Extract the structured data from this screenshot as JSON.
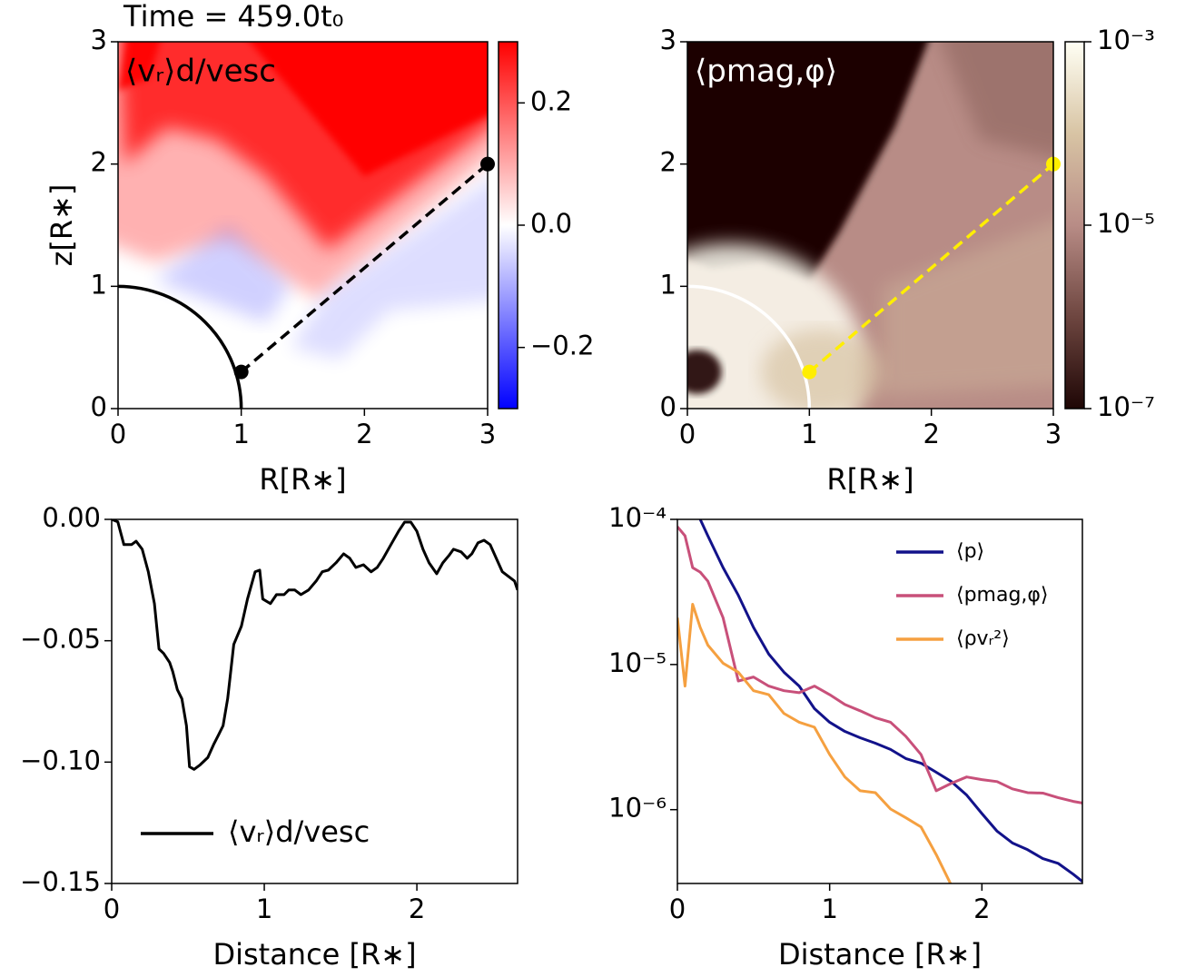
{
  "chart_data": [
    {
      "type": "heatmap",
      "title": "Time = 459.0t₀",
      "label": "⟨vᵣ⟩d/vesc",
      "label_color": "#000000",
      "xlabel": "R[R∗]",
      "ylabel": "z[R∗]",
      "xlim": [
        0,
        3
      ],
      "xticks": [
        0,
        1,
        2,
        3
      ],
      "ylim": [
        0,
        3
      ],
      "yticks": [
        0,
        1,
        2,
        3
      ],
      "colormap": "bwr",
      "clim": [
        -0.3,
        0.3
      ],
      "cticks": [
        {
          "value": 0.2,
          "label": "0.2"
        },
        {
          "value": 0,
          "label": "0.0"
        },
        {
          "value": -0.2,
          "label": "−0.2"
        }
      ],
      "overlay": {
        "circle_r": 1,
        "circle_color": "#000000",
        "x": [
          1,
          3
        ],
        "y": [
          0.3,
          2
        ],
        "color": "#000000"
      }
    },
    {
      "type": "heatmap",
      "label": "⟨pmag,φ⟩",
      "label_color": "#ffffff",
      "xlabel": "R[R∗]",
      "xlim": [
        0,
        3
      ],
      "xticks": [
        0,
        1,
        2,
        3
      ],
      "ylim": [
        0,
        3
      ],
      "yticks": [
        0,
        1,
        2,
        3
      ],
      "colormap": "pink",
      "clog": true,
      "clim": [
        1e-07,
        0.001
      ],
      "cticks": [
        {
          "value": 0.001,
          "label": "10⁻³"
        },
        {
          "value": 1e-05,
          "label": "10⁻⁵"
        },
        {
          "value": 1e-07,
          "label": "10⁻⁷"
        }
      ],
      "overlay": {
        "circle_r": 1,
        "circle_color": "#ffffff",
        "x": [
          1,
          3
        ],
        "y": [
          0.3,
          2
        ],
        "color": "#ffee00"
      }
    },
    {
      "type": "line",
      "xlabel": "Distance [R∗]",
      "xlim": [
        0,
        2.66
      ],
      "xticks": [
        0,
        1,
        2
      ],
      "ylim": [
        -0.15,
        0
      ],
      "yticks": [
        {
          "value": 0,
          "label": "0.00"
        },
        {
          "value": -0.05,
          "label": "−0.05"
        },
        {
          "value": -0.1,
          "label": "−0.10"
        },
        {
          "value": -0.15,
          "label": "−0.15"
        }
      ],
      "legend": "lower left",
      "x": [
        0,
        0.04,
        0.08,
        0.13,
        0.16,
        0.2,
        0.24,
        0.28,
        0.31,
        0.34,
        0.38,
        0.4,
        0.43,
        0.46,
        0.49,
        0.51,
        0.54,
        0.58,
        0.63,
        0.67,
        0.7,
        0.73,
        0.76,
        0.8,
        0.85,
        0.89,
        0.94,
        0.97,
        0.99,
        1.04,
        1.08,
        1.13,
        1.16,
        1.2,
        1.24,
        1.29,
        1.34,
        1.38,
        1.42,
        1.47,
        1.52,
        1.56,
        1.6,
        1.65,
        1.7,
        1.74,
        1.78,
        1.83,
        1.88,
        1.92,
        1.96,
        2.0,
        2.04,
        2.08,
        2.13,
        2.17,
        2.21,
        2.24,
        2.29,
        2.33,
        2.36,
        2.4,
        2.44,
        2.48,
        2.52,
        2.56,
        2.6,
        2.64,
        2.66
      ],
      "series": [
        {
          "name": "⟨vᵣ⟩d/vesc",
          "color": "#000000",
          "values": [
            0,
            -0.001,
            -0.0104,
            -0.0104,
            -0.009,
            -0.0123,
            -0.0216,
            -0.0347,
            -0.0534,
            -0.0552,
            -0.059,
            -0.0627,
            -0.0701,
            -0.0739,
            -0.085,
            -0.1019,
            -0.103,
            -0.1011,
            -0.0981,
            -0.0925,
            -0.0888,
            -0.085,
            -0.0739,
            -0.0515,
            -0.044,
            -0.0328,
            -0.0216,
            -0.0209,
            -0.0328,
            -0.0347,
            -0.031,
            -0.031,
            -0.0291,
            -0.0291,
            -0.031,
            -0.0291,
            -0.0254,
            -0.0216,
            -0.0209,
            -0.0179,
            -0.0142,
            -0.016,
            -0.0198,
            -0.0187,
            -0.0216,
            -0.0198,
            -0.016,
            -0.0104,
            -0.0049,
            -0.0011,
            -0.0011,
            -0.0049,
            -0.0123,
            -0.0179,
            -0.0224,
            -0.0179,
            -0.0149,
            -0.0123,
            -0.0134,
            -0.016,
            -0.0142,
            -0.0097,
            -0.0086,
            -0.0104,
            -0.016,
            -0.0216,
            -0.0235,
            -0.0254,
            -0.0291
          ]
        }
      ]
    },
    {
      "type": "line",
      "yscale": "log",
      "xlabel": "Distance [R∗]",
      "xlim": [
        0,
        2.66
      ],
      "xticks": [
        0,
        1,
        2
      ],
      "ylim": [
        3.1e-07,
        0.0001
      ],
      "yticks": [
        {
          "value": 0.0001,
          "label": "10⁻⁴"
        },
        {
          "value": 1e-05,
          "label": "10⁻⁵"
        },
        {
          "value": 1e-06,
          "label": "10⁻⁶"
        }
      ],
      "legend": "upper right",
      "x": [
        0,
        0.05,
        0.1,
        0.15,
        0.2,
        0.3,
        0.4,
        0.5,
        0.6,
        0.7,
        0.8,
        0.9,
        1.0,
        1.1,
        1.2,
        1.3,
        1.4,
        1.5,
        1.6,
        1.7,
        1.8,
        1.9,
        2.0,
        2.1,
        2.2,
        2.3,
        2.4,
        2.5,
        2.6,
        2.66
      ],
      "series": [
        {
          "name": "⟨p⟩",
          "color": "#12128a",
          "values": [
            null,
            null,
            null,
            0.0001,
            7.7e-05,
            4.65e-05,
            3e-05,
            1.8e-05,
            1.18e-05,
            8.85e-06,
            7.1e-06,
            4.97e-06,
            4e-06,
            3.46e-06,
            3.13e-06,
            2.87e-06,
            2.6e-06,
            2.25e-06,
            2.09e-06,
            1.81e-06,
            1.56e-06,
            1.26e-06,
            9.4e-07,
            7.1e-07,
            5.9e-07,
            5.3e-07,
            4.6e-07,
            4.27e-07,
            3.59e-07,
            3.2e-07
          ]
        },
        {
          "name": "⟨pmag,φ⟩",
          "color": "#c8507a",
          "values": [
            8.9e-05,
            7.7e-05,
            4.65e-05,
            4.33e-05,
            3.75e-05,
            2.1e-05,
            7.7e-06,
            8.2e-06,
            7.1e-06,
            6.6e-06,
            6.4e-06,
            7.1e-06,
            6.2e-06,
            5.3e-06,
            4.8e-06,
            4.3e-06,
            4e-06,
            3.2e-06,
            2.4e-06,
            1.35e-06,
            1.52e-06,
            1.68e-06,
            1.61e-06,
            1.56e-06,
            1.39e-06,
            1.31e-06,
            1.3e-06,
            1.21e-06,
            1.14e-06,
            1.11e-06
          ]
        },
        {
          "name": "⟨ρvᵣ²⟩",
          "color": "#f5a040",
          "values": [
            2.1e-05,
            7.1e-06,
            2.6e-05,
            1.8e-05,
            1.36e-05,
            1.02e-05,
            8.85e-06,
            6.6e-06,
            6.2e-06,
            4.6e-06,
            4e-06,
            3.7e-06,
            2.4e-06,
            1.68e-06,
            1.35e-06,
            1.31e-06,
            1.01e-06,
            8.8e-07,
            7.6e-07,
            4.9e-07,
            3e-07,
            null,
            null,
            null,
            null,
            null,
            null,
            null,
            null,
            null
          ]
        }
      ]
    }
  ]
}
